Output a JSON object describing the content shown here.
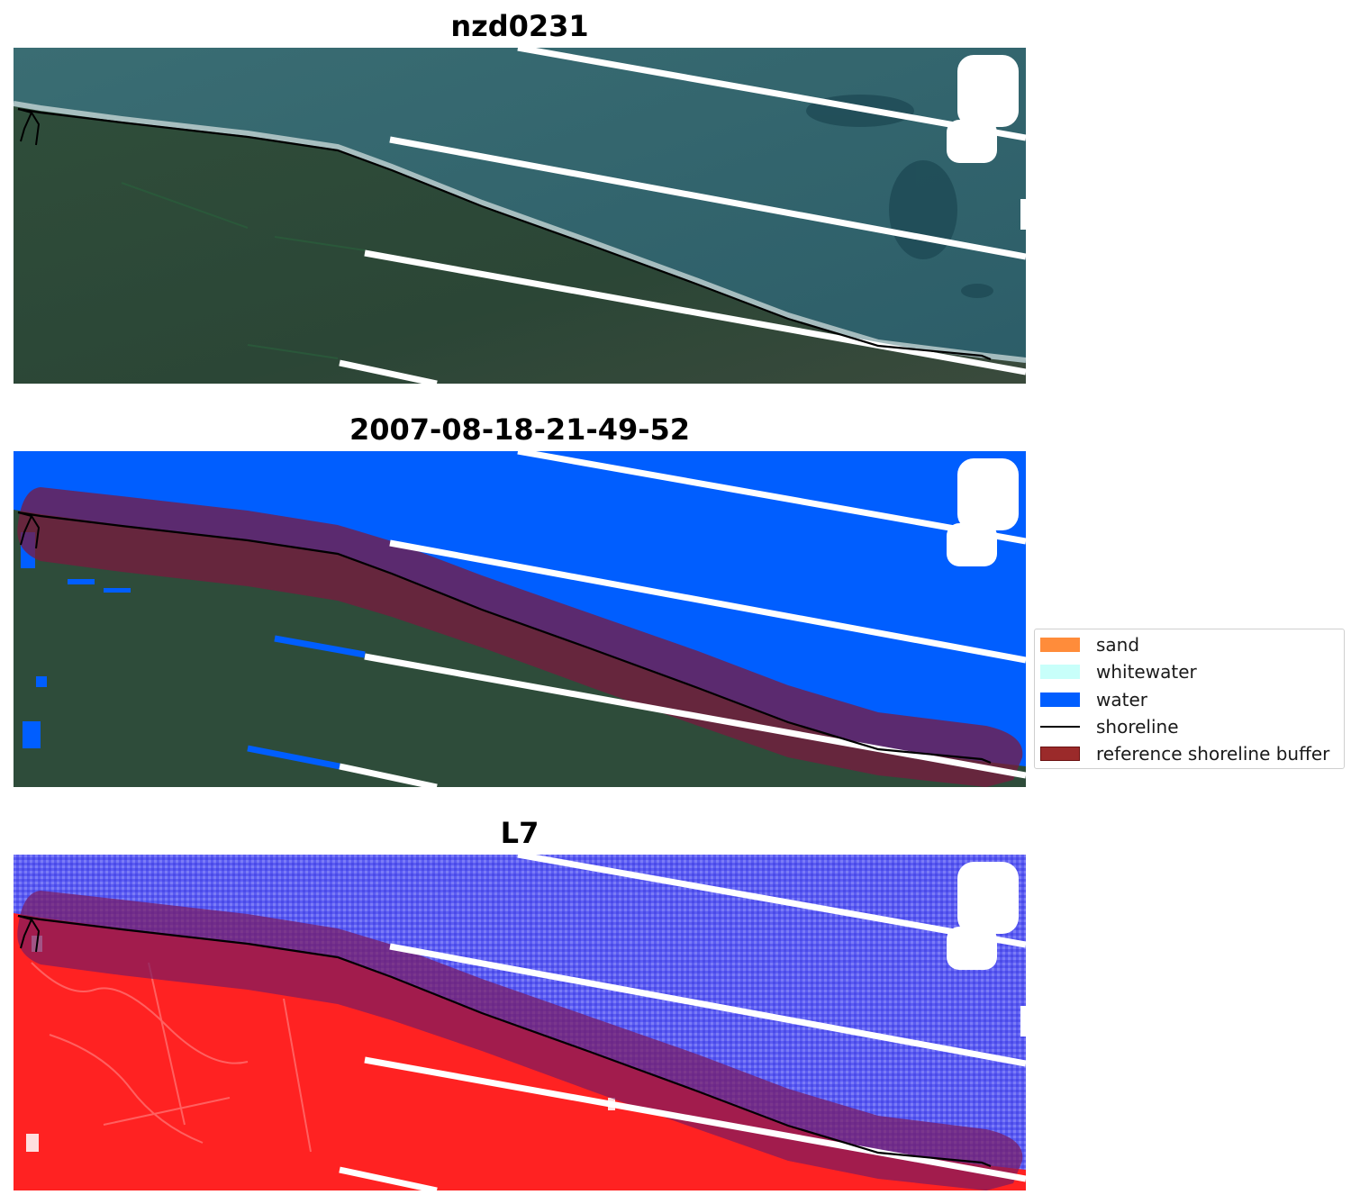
{
  "panels": [
    {
      "title": "nzd0231",
      "layer": "rgb-composite"
    },
    {
      "title": "2007-08-18-21-49-52",
      "layer": "classification-overlay"
    },
    {
      "title": "L7",
      "layer": "water-index"
    }
  ],
  "legend": {
    "items": [
      {
        "label": "sand",
        "color": "#ff8c3a",
        "kind": "patch"
      },
      {
        "label": "whitewater",
        "color": "#c8fffa",
        "kind": "patch"
      },
      {
        "label": "water",
        "color": "#005eff",
        "kind": "patch"
      },
      {
        "label": "shoreline",
        "color": "#000000",
        "kind": "line"
      },
      {
        "label": "reference shoreline buffer",
        "color": "#9b2a2a",
        "kind": "patch"
      }
    ]
  },
  "colors": {
    "sea": "#2f6670",
    "land": "#2e4c3a",
    "water_class": "#005eff",
    "buffer": "#8b1d3c",
    "index_water": "#5a5cf0",
    "index_land": "#ff2020",
    "shoreline": "#000000",
    "nodata_stripe": "#ffffff"
  }
}
